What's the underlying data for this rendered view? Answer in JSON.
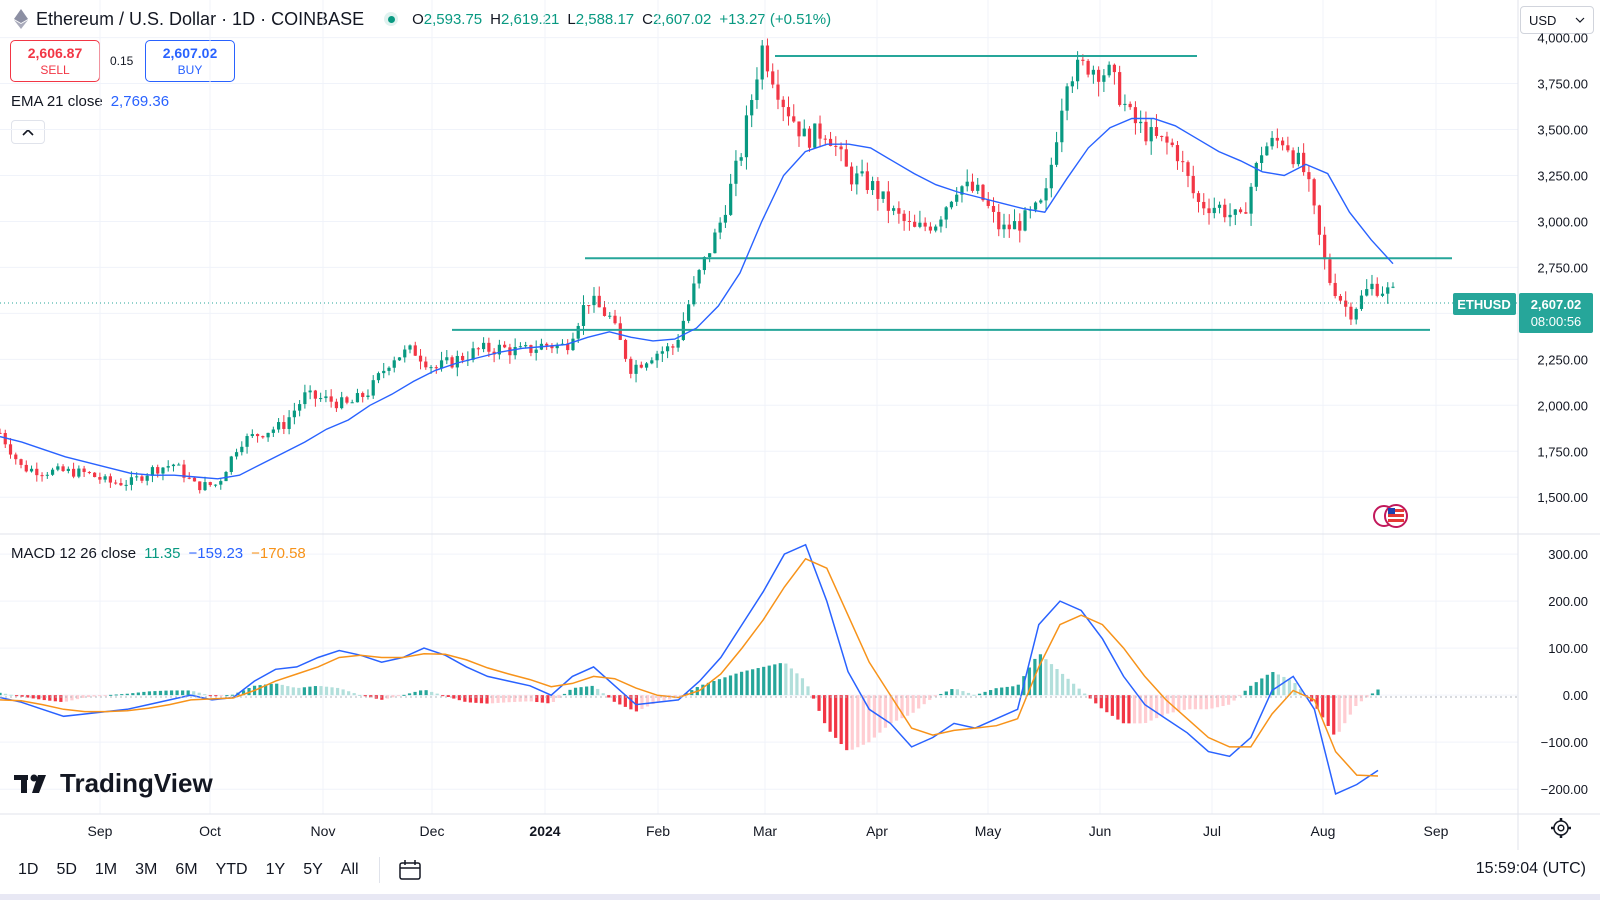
{
  "header": {
    "title": "Ethereum / U.S. Dollar · 1D · COINBASE",
    "ohlc": [
      {
        "key": "O",
        "value": "2,593.75"
      },
      {
        "key": "H",
        "value": "2,619.21"
      },
      {
        "key": "L",
        "value": "2,588.17"
      },
      {
        "key": "C",
        "value": "2,607.02"
      }
    ],
    "change": "+13.27 (+0.51%)",
    "currency": "USD"
  },
  "trade": {
    "sell_price": "2,606.87",
    "sell_label": "SELL",
    "spread": "0.15",
    "buy_price": "2,607.02",
    "buy_label": "BUY"
  },
  "ema": {
    "label": "EMA 21 close",
    "value": "2,769.36"
  },
  "macd": {
    "label": "MACD 12 26 close",
    "hist": "11.35",
    "macd": "−159.23",
    "signal": "−170.58"
  },
  "price_tag": {
    "symbol": "ETHUSD",
    "price": "2,607.02",
    "countdown": "08:00:56"
  },
  "logo_text": "TradingView",
  "ranges": [
    "1D",
    "5D",
    "1M",
    "3M",
    "6M",
    "YTD",
    "1Y",
    "5Y",
    "All"
  ],
  "clock": "15:59:04 (UTC)",
  "icons": [
    "ethereum-icon",
    "live-indicator-icon",
    "chevron-up-icon",
    "calendar-icon",
    "gear-icon",
    "tradingview-logo-icon",
    "us-flag-icon"
  ],
  "colors": {
    "up": "#089981",
    "down": "#f23645",
    "ema": "#2962ff",
    "macd_line": "#2962ff",
    "signal_line": "#f7931a",
    "level_line": "#26a69a",
    "hist_up": "#26a69a",
    "hist_up_light": "#b2dfdb",
    "hist_down": "#f23645",
    "hist_down_light": "#ffcdd2"
  },
  "chart_data": [
    {
      "type": "candlestick",
      "title": "Ethereum / U.S. Dollar · 1D · COINBASE",
      "ylim": [
        1300,
        4150
      ],
      "y_ticks": [
        "4,000.00",
        "3,750.00",
        "3,500.00",
        "3,250.00",
        "3,000.00",
        "2,750.00",
        "2,500.00",
        "2,250.00",
        "2,000.00",
        "1,750.00",
        "1,500.00"
      ],
      "x_ticks": [
        "Sep",
        "Oct",
        "Nov",
        "Dec",
        "2024",
        "Feb",
        "Mar",
        "Apr",
        "May",
        "Jun",
        "Jul",
        "Aug",
        "Sep"
      ],
      "date_range": [
        "2023-08-16",
        "2024-08-16"
      ],
      "close_series_weekly": [
        1850,
        1660,
        1640,
        1640,
        1630,
        1580,
        1580,
        1650,
        1680,
        1560,
        1570,
        1800,
        1850,
        1890,
        2050,
        2030,
        2000,
        2080,
        2260,
        2300,
        2200,
        2250,
        2300,
        2310,
        2290,
        2330,
        2320,
        2580,
        2480,
        2200,
        2280,
        2320,
        2680,
        2960,
        3350,
        3950,
        3650,
        3450,
        3500,
        3250,
        3200,
        3050,
        2950,
        3000,
        3200,
        3150,
        2950,
        3000,
        3100,
        3800,
        3850,
        3800,
        3550,
        3450,
        3400,
        3100,
        3080,
        3000,
        3400,
        3450,
        3250,
        2700,
        2500,
        2650,
        2610
      ],
      "series": [
        {
          "name": "EMA 21 close",
          "values": [
            1830,
            1800,
            1760,
            1720,
            1690,
            1660,
            1630,
            1620,
            1620,
            1610,
            1600,
            1620,
            1680,
            1740,
            1800,
            1870,
            1920,
            2000,
            2060,
            2130,
            2190,
            2230,
            2260,
            2290,
            2310,
            2320,
            2330,
            2370,
            2400,
            2370,
            2350,
            2360,
            2420,
            2540,
            2720,
            3000,
            3250,
            3380,
            3420,
            3420,
            3400,
            3330,
            3260,
            3200,
            3160,
            3130,
            3100,
            3070,
            3050,
            3230,
            3400,
            3510,
            3560,
            3560,
            3520,
            3450,
            3380,
            3330,
            3270,
            3250,
            3310,
            3260,
            3050,
            2900,
            2770
          ]
        }
      ],
      "horizontal_levels": [
        3900,
        2800,
        2410
      ],
      "last_price": "2,607.02"
    },
    {
      "type": "macd",
      "title": "MACD 12 26 close",
      "ylim": [
        -240,
        330
      ],
      "y_ticks": [
        "300.00",
        "200.00",
        "100.00",
        "0.00",
        "−100.00",
        "−200.00"
      ],
      "series": [
        {
          "name": "MACD",
          "values": [
            -5,
            -15,
            -30,
            -45,
            -40,
            -35,
            -30,
            -20,
            -10,
            0,
            -10,
            -5,
            30,
            55,
            60,
            80,
            95,
            85,
            70,
            80,
            100,
            85,
            60,
            40,
            30,
            20,
            0,
            40,
            60,
            20,
            -20,
            -15,
            -10,
            30,
            80,
            150,
            220,
            300,
            320,
            200,
            50,
            -30,
            -60,
            -110,
            -90,
            -60,
            -70,
            -50,
            -30,
            150,
            200,
            180,
            120,
            40,
            -20,
            -50,
            -80,
            -120,
            -130,
            -90,
            10,
            40,
            -30,
            -210,
            -190,
            -160
          ]
        },
        {
          "name": "Signal",
          "values": [
            -10,
            -12,
            -20,
            -30,
            -35,
            -35,
            -33,
            -28,
            -20,
            -10,
            -8,
            -6,
            10,
            30,
            45,
            60,
            80,
            85,
            80,
            80,
            88,
            87,
            75,
            58,
            45,
            33,
            18,
            25,
            40,
            35,
            15,
            0,
            -5,
            10,
            45,
            100,
            160,
            230,
            290,
            270,
            170,
            70,
            0,
            -70,
            -85,
            -75,
            -70,
            -65,
            -50,
            60,
            150,
            170,
            150,
            100,
            40,
            -10,
            -50,
            -90,
            -110,
            -110,
            -40,
            10,
            -10,
            -120,
            -170,
            -172
          ]
        }
      ]
    }
  ]
}
